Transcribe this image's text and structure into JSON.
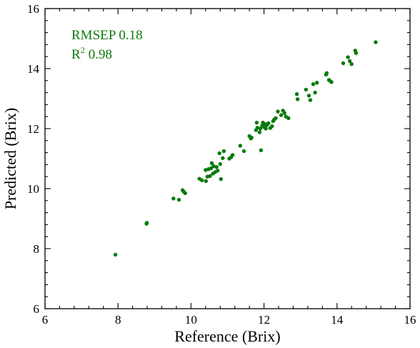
{
  "chart_data": {
    "type": "scatter",
    "xlabel": "Reference (Brix)",
    "ylabel": "Predicted (Brix)",
    "xlim": [
      6,
      16
    ],
    "ylim": [
      6,
      16
    ],
    "xticks": [
      6,
      8,
      10,
      12,
      14,
      16
    ],
    "yticks": [
      6,
      8,
      10,
      12,
      14,
      16
    ],
    "minor_ticks_per_major": 4,
    "grid": false,
    "legend": "none",
    "point_color": "#0a7a0a",
    "annotations": {
      "rmsep_label": "RMSEP 0.18",
      "r2_prefix": "R",
      "r2_sup": "2",
      "r2_value": "0.98"
    },
    "series": [
      {
        "x": [
          7.93,
          8.78,
          8.79,
          9.52,
          9.67,
          9.77,
          9.8,
          9.84,
          10.23,
          10.3,
          10.4,
          10.41,
          10.45,
          10.48,
          10.52,
          10.55,
          10.57,
          10.6,
          10.62,
          10.66,
          10.7,
          10.73,
          10.78,
          10.8,
          10.82,
          10.87,
          10.9,
          11.05,
          11.1,
          11.14,
          11.35,
          11.45,
          11.6,
          11.64,
          11.66,
          11.78,
          11.8,
          11.82,
          11.88,
          11.9,
          11.92,
          11.95,
          11.97,
          12.0,
          12.03,
          12.05,
          12.08,
          12.12,
          12.17,
          12.22,
          12.25,
          12.28,
          12.32,
          12.38,
          12.47,
          12.52,
          12.56,
          12.6,
          12.67,
          12.9,
          12.92,
          13.15,
          13.23,
          13.27,
          13.35,
          13.4,
          13.45,
          13.7,
          13.72,
          13.78,
          13.82,
          13.85,
          14.17,
          14.3,
          14.35,
          14.4,
          14.5,
          14.52,
          15.06
        ],
        "y": [
          7.8,
          8.83,
          8.86,
          9.67,
          9.63,
          9.95,
          9.9,
          9.85,
          10.33,
          10.28,
          10.62,
          10.25,
          10.4,
          10.65,
          10.42,
          10.68,
          10.85,
          10.5,
          10.75,
          10.55,
          10.72,
          10.6,
          11.18,
          10.82,
          10.32,
          11.02,
          11.25,
          11.0,
          11.05,
          11.12,
          11.43,
          11.25,
          11.75,
          11.67,
          11.7,
          11.95,
          12.2,
          12.03,
          11.88,
          12.0,
          11.28,
          12.1,
          12.2,
          12.05,
          12.15,
          12.0,
          12.12,
          12.18,
          12.02,
          12.08,
          12.25,
          12.3,
          12.35,
          12.57,
          12.45,
          12.6,
          12.52,
          12.4,
          12.35,
          13.15,
          12.98,
          13.3,
          13.1,
          12.95,
          13.48,
          13.2,
          13.53,
          13.8,
          13.85,
          13.62,
          13.58,
          13.55,
          14.18,
          14.38,
          14.25,
          14.15,
          14.6,
          14.52,
          14.88
        ]
      }
    ]
  }
}
